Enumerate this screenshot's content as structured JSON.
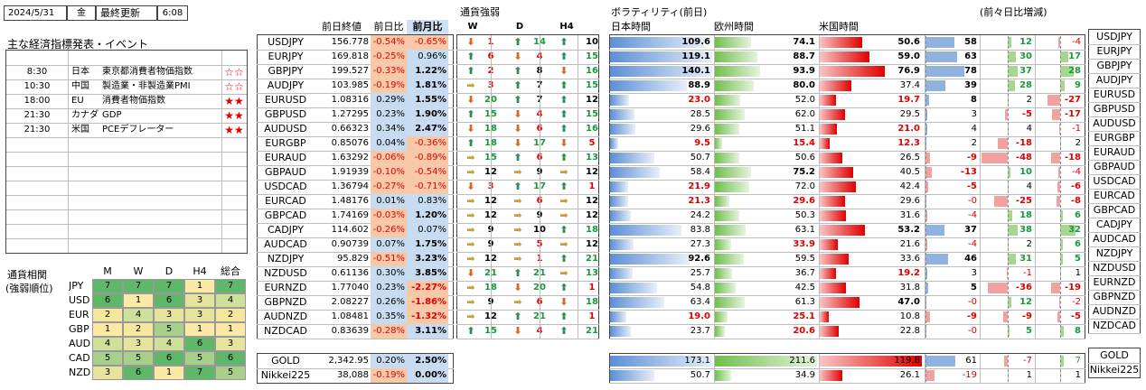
{
  "header": {
    "date": "2024/5/31",
    "weekday": "金",
    "update_label": "最終更新",
    "time": "6:08"
  },
  "events": {
    "title": "主な経済指標発表・イベント",
    "items": [
      {
        "time": "8:30",
        "country": "日本",
        "name": "東京都消費者物価指数",
        "stars": "☆☆",
        "filled": false
      },
      {
        "time": "10:30",
        "country": "中国",
        "name": "製造業・非製造業PMI",
        "stars": "☆☆",
        "filled": false
      },
      {
        "time": "18:00",
        "country": "EU",
        "name": "消費者物価指数",
        "stars": "★★",
        "filled": true
      },
      {
        "time": "21:30",
        "country": "カナダ",
        "name": "GDP",
        "stars": "★★",
        "filled": true
      },
      {
        "time": "21:30",
        "country": "米国",
        "name": "PCEデフレーター",
        "stars": "★★",
        "filled": true
      }
    ]
  },
  "correlation": {
    "title1": "通貨相関",
    "title2": "(強弱順位)",
    "headers": [
      "M",
      "W",
      "D",
      "H4",
      "総合"
    ],
    "rows": [
      {
        "ccy": "JPY",
        "vals": [
          "7",
          "7",
          "7",
          "1",
          "7"
        ]
      },
      {
        "ccy": "USD",
        "vals": [
          "6",
          "1",
          "6",
          "3",
          "4"
        ]
      },
      {
        "ccy": "EUR",
        "vals": [
          "2",
          "4",
          "3",
          "3",
          "2"
        ]
      },
      {
        "ccy": "GBP",
        "vals": [
          "1",
          "2",
          "5",
          "1",
          "1"
        ]
      },
      {
        "ccy": "AUD",
        "vals": [
          "4",
          "3",
          "4",
          "6",
          "3"
        ]
      },
      {
        "ccy": "CAD",
        "vals": [
          "5",
          "5",
          "6",
          "5",
          "6"
        ]
      },
      {
        "ccy": "NZD",
        "vals": [
          "3",
          "6",
          "1",
          "7",
          "5"
        ]
      }
    ]
  },
  "table_headers": {
    "close": "前日終値",
    "dchg": "前日比",
    "mchg": "前月比",
    "strength": "通貨強弱",
    "w": "W",
    "d": "D",
    "h4": "H4",
    "vol": "ボラティリティ(前日)",
    "jp": "日本時間",
    "eu": "欧州時間",
    "us": "米国時間",
    "cmp": "(前々日比増減)"
  },
  "pairs": [
    {
      "name": "USDJPY",
      "close": "156.778",
      "d": "-0.54%",
      "m": "-0.65%",
      "w": "dn",
      "wv": "1",
      "dd": "up",
      "dv": "14",
      "h4": "up",
      "h4v": "10",
      "jp": "109.6",
      "eu": "74.1",
      "us": "50.6",
      "jpf": 0.92,
      "euf": 0.35,
      "usf": 0.42,
      "c1": "58",
      "c1f": 0.6,
      "c2": "12",
      "c2f": 0.12,
      "c3": "-4",
      "c3f": -0.08
    },
    {
      "name": "EURJPY",
      "close": "169.818",
      "d": "-0.25%",
      "m": "0.96%",
      "w": "up",
      "wv": "6",
      "dd": "dn",
      "dv": "4",
      "h4": "up",
      "h4v": "15",
      "jp": "119.1",
      "eu": "88.7",
      "us": "59.0",
      "jpf": 1.0,
      "euf": 0.42,
      "usf": 0.49,
      "c1": "63",
      "c1f": 0.65,
      "c2": "30",
      "c2f": 0.3,
      "c3": "17",
      "c3f": 0.34
    },
    {
      "name": "GBPJPY",
      "close": "199.527",
      "d": "-0.33%",
      "m": "1.22%",
      "w": "up",
      "wv": "2",
      "dd": "up",
      "dv": "8",
      "h4": "dn",
      "h4v": "16",
      "jp": "140.1",
      "eu": "93.9",
      "us": "76.9",
      "jpf": 1.0,
      "euf": 0.44,
      "usf": 0.64,
      "c1": "78",
      "c1f": 0.8,
      "c2": "37",
      "c2f": 0.37,
      "c3": "28",
      "c3f": 0.56
    },
    {
      "name": "AUDJPY",
      "close": "103.985",
      "d": "-0.19%",
      "m": "1.81%",
      "w": "fl",
      "wv": "3",
      "dd": "up",
      "dv": "7",
      "h4": "up",
      "h4v": "15",
      "jp": "88.9",
      "eu": "80.0",
      "us": "37.4",
      "jpf": 0.75,
      "euf": 0.38,
      "usf": 0.31,
      "c1": "39",
      "c1f": 0.4,
      "c2": "28",
      "c2f": 0.28,
      "c3": "9",
      "c3f": 0.18
    },
    {
      "name": "EURUSD",
      "close": "1.08316",
      "d": "0.29%",
      "m": "1.55%",
      "w": "dn",
      "wv": "20",
      "dd": "up",
      "dv": "7",
      "h4": "up",
      "h4v": "12",
      "jp": "23.0",
      "eu": "52.0",
      "us": "19.7",
      "jpf": 0.19,
      "euf": 0.25,
      "usf": 0.16,
      "c1": "8",
      "c1f": 0.08,
      "c2": "2",
      "c2f": 0.02,
      "c3": "-27",
      "c3f": -0.54
    },
    {
      "name": "GBPUSD",
      "close": "1.27295",
      "d": "0.23%",
      "m": "1.90%",
      "w": "up",
      "wv": "15",
      "dd": "dn",
      "dv": "4",
      "h4": "up",
      "h4v": "15",
      "jp": "28.5",
      "eu": "62.0",
      "us": "29.5",
      "jpf": 0.24,
      "euf": 0.29,
      "usf": 0.25,
      "c1": "3",
      "c1f": 0.03,
      "c2": "-5",
      "c2f": -0.1,
      "c3": "-17",
      "c3f": -0.34
    },
    {
      "name": "AUDUSD",
      "close": "0.66323",
      "d": "0.34%",
      "m": "2.47%",
      "w": "dn",
      "wv": "18",
      "dd": "dn",
      "dv": "6",
      "h4": "up",
      "h4v": "16",
      "jp": "29.6",
      "eu": "51.1",
      "us": "21.0",
      "jpf": 0.25,
      "euf": 0.24,
      "usf": 0.17,
      "c1": "4",
      "c1f": 0.04,
      "c2": "4",
      "c2f": 0.04,
      "c3": "-1",
      "c3f": -0.02
    },
    {
      "name": "EURGBP",
      "close": "0.85076",
      "d": "0.04%",
      "m": "-0.36%",
      "w": "up",
      "wv": "18",
      "dd": "dn",
      "dv": "17",
      "h4": "dn",
      "h4v": "5",
      "jp": "9.5",
      "eu": "15.4",
      "us": "12.3",
      "jpf": 0.08,
      "euf": 0.07,
      "usf": 0.1,
      "c1": "2",
      "c1f": 0.02,
      "c2": "-18",
      "c2f": -0.36,
      "c3": "2",
      "c3f": 0.04
    },
    {
      "name": "EURAUD",
      "close": "1.63292",
      "d": "-0.06%",
      "m": "-0.89%",
      "w": "fl",
      "wv": "15",
      "dd": "up",
      "dv": "6",
      "h4": "up",
      "h4v": "13",
      "jp": "50.7",
      "eu": "50.6",
      "us": "26.5",
      "jpf": 0.43,
      "euf": 0.24,
      "usf": 0.22,
      "c1": "-9",
      "c1f": -0.09,
      "c2": "-48",
      "c2f": -0.96,
      "c3": "-18",
      "c3f": -0.36
    },
    {
      "name": "GBPAUD",
      "close": "1.91939",
      "d": "-0.10%",
      "m": "-0.54%",
      "w": "fl",
      "wv": "12",
      "dd": "fl",
      "dv": "9",
      "h4": "fl",
      "h4v": "12",
      "jp": "58.4",
      "eu": "75.2",
      "us": "40.5",
      "jpf": 0.49,
      "euf": 0.35,
      "usf": 0.33,
      "c1": "-13",
      "c1f": -0.13,
      "c2": "10",
      "c2f": 0.1,
      "c3": "-4",
      "c3f": -0.08
    },
    {
      "name": "USDCAD",
      "close": "1.36794",
      "d": "-0.27%",
      "m": "-0.71%",
      "w": "dn",
      "wv": "3",
      "dd": "up",
      "dv": "17",
      "h4": "up",
      "h4v": "1",
      "jp": "21.9",
      "eu": "72.0",
      "us": "42.4",
      "jpf": 0.18,
      "euf": 0.34,
      "usf": 0.35,
      "c1": "-5",
      "c1f": -0.05,
      "c2": "4",
      "c2f": 0.04,
      "c3": "-6",
      "c3f": -0.12
    },
    {
      "name": "EURCAD",
      "close": "1.48176",
      "d": "0.01%",
      "m": "0.83%",
      "w": "fl",
      "wv": "12",
      "dd": "fl",
      "dv": "6",
      "h4": "fl",
      "h4v": "12",
      "jp": "21.3",
      "eu": "29.6",
      "us": "29.6",
      "jpf": 0.18,
      "euf": 0.14,
      "usf": 0.25,
      "c1": "-0",
      "c1f": 0,
      "c2": "-25",
      "c2f": -0.5,
      "c3": "-8",
      "c3f": -0.16
    },
    {
      "name": "GBPCAD",
      "close": "1.74169",
      "d": "-0.03%",
      "m": "1.20%",
      "w": "fl",
      "wv": "12",
      "dd": "fl",
      "dv": "9",
      "h4": "fl",
      "h4v": "12",
      "jp": "24.2",
      "eu": "50.3",
      "us": "31.6",
      "jpf": 0.2,
      "euf": 0.24,
      "usf": 0.26,
      "c1": "-4",
      "c1f": -0.04,
      "c2": "18",
      "c2f": 0.18,
      "c3": "6",
      "c3f": 0.12
    },
    {
      "name": "CADJPY",
      "close": "114.602",
      "d": "-0.26%",
      "m": "0.07%",
      "w": "fl",
      "wv": "9",
      "dd": "fl",
      "dv": "10",
      "h4": "up",
      "h4v": "18",
      "jp": "83.8",
      "eu": "63.1",
      "us": "53.2",
      "jpf": 0.7,
      "euf": 0.3,
      "usf": 0.44,
      "c1": "37",
      "c1f": 0.38,
      "c2": "38",
      "c2f": 0.38,
      "c3": "32",
      "c3f": 0.64
    },
    {
      "name": "AUDCAD",
      "close": "0.90739",
      "d": "0.07%",
      "m": "1.75%",
      "w": "fl",
      "wv": "9",
      "dd": "fl",
      "dv": "5",
      "h4": "fl",
      "h4v": "12",
      "jp": "27.3",
      "eu": "33.9",
      "us": "21.6",
      "jpf": 0.23,
      "euf": 0.16,
      "usf": 0.18,
      "c1": "-4",
      "c1f": -0.04,
      "c2": "2",
      "c2f": 0.02,
      "c3": "6",
      "c3f": 0.12
    },
    {
      "name": "NZDJPY",
      "close": "95.829",
      "d": "-0.51%",
      "m": "3.23%",
      "w": "fl",
      "wv": "12",
      "dd": "fl",
      "dv": "1",
      "h4": "up",
      "h4v": "21",
      "jp": "92.6",
      "eu": "59.5",
      "us": "33.6",
      "jpf": 0.78,
      "euf": 0.28,
      "usf": 0.28,
      "c1": "46",
      "c1f": 0.47,
      "c2": "31",
      "c2f": 0.31,
      "c3": "5",
      "c3f": 0.1
    },
    {
      "name": "NZDUSD",
      "close": "0.61136",
      "d": "0.30%",
      "m": "3.85%",
      "w": "dn",
      "wv": "21",
      "dd": "up",
      "dv": "21",
      "h4": "fl",
      "h4v": "13",
      "jp": "25.7",
      "eu": "36.7",
      "us": "19.2",
      "jpf": 0.22,
      "euf": 0.17,
      "usf": 0.16,
      "c1": "3",
      "c1f": 0.03,
      "c2": "-1",
      "c2f": -0.02,
      "c3": "1",
      "c3f": 0.02
    },
    {
      "name": "EURNZD",
      "close": "1.77040",
      "d": "0.23%",
      "m": "-2.27%",
      "w": "fl",
      "wv": "18",
      "dd": "dn",
      "dv": "20",
      "h4": "up",
      "h4v": "1",
      "jp": "54.8",
      "eu": "42.5",
      "us": "31.8",
      "jpf": 0.46,
      "euf": 0.2,
      "usf": 0.26,
      "c1": "5",
      "c1f": 0.05,
      "c2": "-36",
      "c2f": -0.72,
      "c3": "-19",
      "c3f": -0.38
    },
    {
      "name": "GBPNZD",
      "close": "2.08227",
      "d": "0.26%",
      "m": "-1.86%",
      "w": "fl",
      "wv": "9",
      "dd": "fl",
      "dv": "6",
      "h4": "dn",
      "h4v": "18",
      "jp": "63.4",
      "eu": "61.3",
      "us": "47.0",
      "jpf": 0.53,
      "euf": 0.29,
      "usf": 0.39,
      "c1": "-0",
      "c1f": 0,
      "c2": "12",
      "c2f": 0.12,
      "c3": "-2",
      "c3f": -0.04
    },
    {
      "name": "AUDNZD",
      "close": "1.08481",
      "d": "0.35%",
      "m": "-1.32%",
      "w": "fl",
      "wv": "12",
      "dd": "up",
      "dv": "21",
      "h4": "up",
      "h4v": "1",
      "jp": "19.0",
      "eu": "25.1",
      "us": "10.8",
      "jpf": 0.16,
      "euf": 0.12,
      "usf": 0.09,
      "c1": "-9",
      "c1f": -0.09,
      "c2": "-9",
      "c2f": -0.18,
      "c3": "-5",
      "c3f": -0.1
    },
    {
      "name": "NZDCAD",
      "close": "0.83639",
      "d": "-0.28%",
      "m": "3.11%",
      "w": "up",
      "wv": "15",
      "dd": "dn",
      "dv": "4",
      "h4": "up",
      "h4v": "21",
      "jp": "23.7",
      "eu": "20.6",
      "us": "22.8",
      "jpf": 0.2,
      "euf": 0.1,
      "usf": 0.19,
      "c1": "-0",
      "c1f": 0,
      "c2": "5",
      "c2f": 0.05,
      "c3": "8",
      "c3f": 0.16
    }
  ],
  "others": [
    {
      "name": "GOLD",
      "close": "2,342.95",
      "d": "0.20%",
      "m": "2.50%",
      "jp": "173.1",
      "eu": "211.6",
      "us": "119.8",
      "jpf": 1.0,
      "euf": 1.0,
      "usf": 1.0,
      "c1": "61",
      "c1f": 0.62,
      "c2": "-7",
      "c2f": -0.14,
      "c3": "7",
      "c3f": 0.14
    },
    {
      "name": "Nikkei225",
      "close": "38,088",
      "d": "-0.19%",
      "m": "0.00%",
      "jp": "50.7",
      "eu": "34.9",
      "us": "26.1",
      "jpf": 0.43,
      "euf": 0.16,
      "usf": 0.22,
      "c1": "-19",
      "c1f": -0.19,
      "c2": "1",
      "c2f": 0.02,
      "c3": "1",
      "c3f": 0.02
    }
  ]
}
